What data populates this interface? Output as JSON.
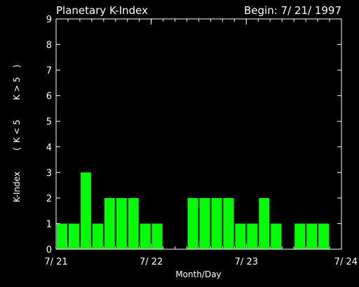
{
  "chart_data": {
    "type": "bar",
    "title": "Planetary K-Index",
    "begin_label": "Begin: 7/ 21/ 1997",
    "xlabel": "Month/Day",
    "ylabel_parts": [
      {
        "text": "K-Index",
        "color": "#ffffff"
      },
      {
        "text": "(",
        "color": "#ffffff"
      },
      {
        "text": "K < 5",
        "color": "#00ff00"
      },
      {
        "text": "K > 5",
        "color": "#ff2020"
      },
      {
        "text": ")",
        "color": "#ffffff"
      }
    ],
    "ylim": [
      0,
      9
    ],
    "yticks": [
      "0",
      "1",
      "2",
      "3",
      "4",
      "5",
      "6",
      "7",
      "8",
      "9"
    ],
    "x_tick_labels": [
      "7/ 21",
      "7/ 22",
      "7/ 23",
      "7/ 24"
    ],
    "bars_per_day": 8,
    "values": [
      1,
      1,
      3,
      1,
      2,
      2,
      2,
      1,
      1,
      0,
      0,
      2,
      2,
      2,
      2,
      1,
      1,
      2,
      1,
      0,
      1,
      1,
      1,
      0
    ],
    "bar_color_low": "#00ff00",
    "bar_color_high": "#ff2020",
    "threshold": 5,
    "grid": false,
    "legend": "none"
  }
}
